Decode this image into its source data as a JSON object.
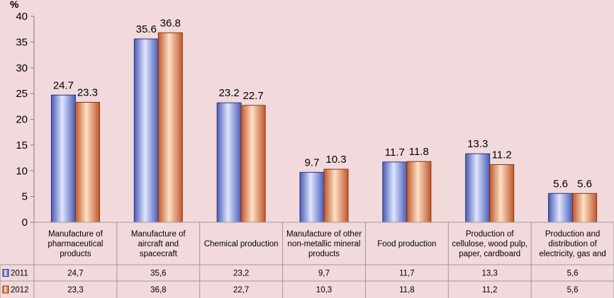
{
  "chart_data": {
    "type": "bar",
    "title": "",
    "y_unit": "%",
    "xlabel": "",
    "ylabel": "%",
    "ylim": [
      0,
      40
    ],
    "yticks": [
      0,
      5,
      10,
      15,
      20,
      25,
      30,
      35,
      40
    ],
    "grid": false,
    "categories": [
      [
        "Manufacture of",
        "pharmaceutical",
        "products"
      ],
      [
        "Manufacture of",
        "aircraft and",
        "spacecraft"
      ],
      [
        "Chemical production"
      ],
      [
        "Manufacture of other",
        "non-metallic mineral",
        "products"
      ],
      [
        "Food production"
      ],
      [
        "Production of",
        "cellulose, wood pulp,",
        "paper, cardboard"
      ],
      [
        "Production and",
        "distribution of",
        "electricity, gas and"
      ]
    ],
    "series": [
      {
        "name": "2011",
        "values": [
          24.7,
          35.6,
          23.2,
          9.7,
          11.7,
          13.3,
          5.6
        ],
        "data_labels": [
          "24.7",
          "35.6",
          "23.2",
          "9.7",
          "11.7",
          "13.3",
          "5.6"
        ],
        "table_values": [
          "24,7",
          "35,6",
          "23,2",
          "9,7",
          "11,7",
          "13,3",
          "5,6"
        ],
        "color": "#4a5bb5",
        "color_light": "#dfe6ff",
        "color_dark": "#28357f"
      },
      {
        "name": "2012",
        "values": [
          23.3,
          36.8,
          22.7,
          10.3,
          11.8,
          11.2,
          5.6
        ],
        "data_labels": [
          "23.3",
          "36.8",
          "22.7",
          "10.3",
          "11.8",
          "11.2",
          "5.6"
        ],
        "table_values": [
          "23,3",
          "36,8",
          "22,7",
          "10,3",
          "11,8",
          "11,2",
          "5,6"
        ],
        "color": "#c0582a",
        "color_light": "#fde0c6",
        "color_dark": "#8c3310"
      }
    ],
    "legend": "data-table-left"
  }
}
